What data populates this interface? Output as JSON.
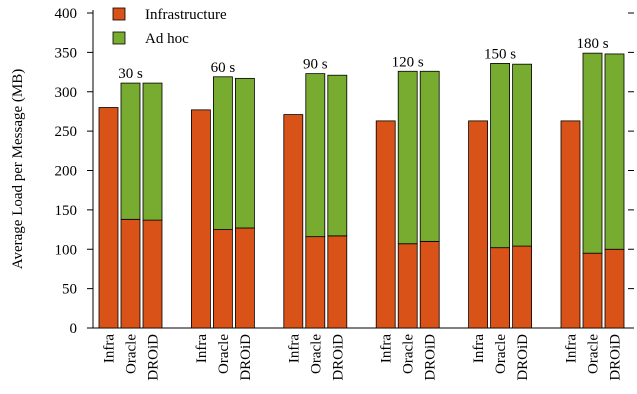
{
  "chart_data": {
    "type": "bar",
    "stacked": true,
    "ylabel": "Average Load per Message (MB)",
    "ylim": [
      0,
      400
    ],
    "yticks": [
      0,
      50,
      100,
      150,
      200,
      250,
      300,
      350,
      400
    ],
    "grid": false,
    "legend_position": "top-left",
    "colors": {
      "Infrastructure": "#d95319",
      "Ad hoc": "#77ac30"
    },
    "series": [
      {
        "name": "Infrastructure"
      },
      {
        "name": "Ad hoc"
      }
    ],
    "groups": [
      {
        "label": "30 s",
        "bars": [
          {
            "category": "Infra",
            "Infrastructure": 280,
            "Ad hoc": 0
          },
          {
            "category": "Oracle",
            "Infrastructure": 138,
            "Ad hoc": 173
          },
          {
            "category": "DROiD",
            "Infrastructure": 137,
            "Ad hoc": 174
          }
        ]
      },
      {
        "label": "60 s",
        "bars": [
          {
            "category": "Infra",
            "Infrastructure": 277,
            "Ad hoc": 0
          },
          {
            "category": "Oracle",
            "Infrastructure": 125,
            "Ad hoc": 194
          },
          {
            "category": "DROiD",
            "Infrastructure": 127,
            "Ad hoc": 190
          }
        ]
      },
      {
        "label": "90 s",
        "bars": [
          {
            "category": "Infra",
            "Infrastructure": 271,
            "Ad hoc": 0
          },
          {
            "category": "Oracle",
            "Infrastructure": 116,
            "Ad hoc": 207
          },
          {
            "category": "DROiD",
            "Infrastructure": 117,
            "Ad hoc": 204
          }
        ]
      },
      {
        "label": "120 s",
        "bars": [
          {
            "category": "Infra",
            "Infrastructure": 263,
            "Ad hoc": 0
          },
          {
            "category": "Oracle",
            "Infrastructure": 107,
            "Ad hoc": 219
          },
          {
            "category": "DROiD",
            "Infrastructure": 110,
            "Ad hoc": 216
          }
        ]
      },
      {
        "label": "150 s",
        "bars": [
          {
            "category": "Infra",
            "Infrastructure": 263,
            "Ad hoc": 0
          },
          {
            "category": "Oracle",
            "Infrastructure": 102,
            "Ad hoc": 234
          },
          {
            "category": "DROiD",
            "Infrastructure": 104,
            "Ad hoc": 231
          }
        ]
      },
      {
        "label": "180 s",
        "bars": [
          {
            "category": "Infra",
            "Infrastructure": 263,
            "Ad hoc": 0
          },
          {
            "category": "Oracle",
            "Infrastructure": 95,
            "Ad hoc": 254
          },
          {
            "category": "DROiD",
            "Infrastructure": 100,
            "Ad hoc": 248
          }
        ]
      }
    ]
  }
}
